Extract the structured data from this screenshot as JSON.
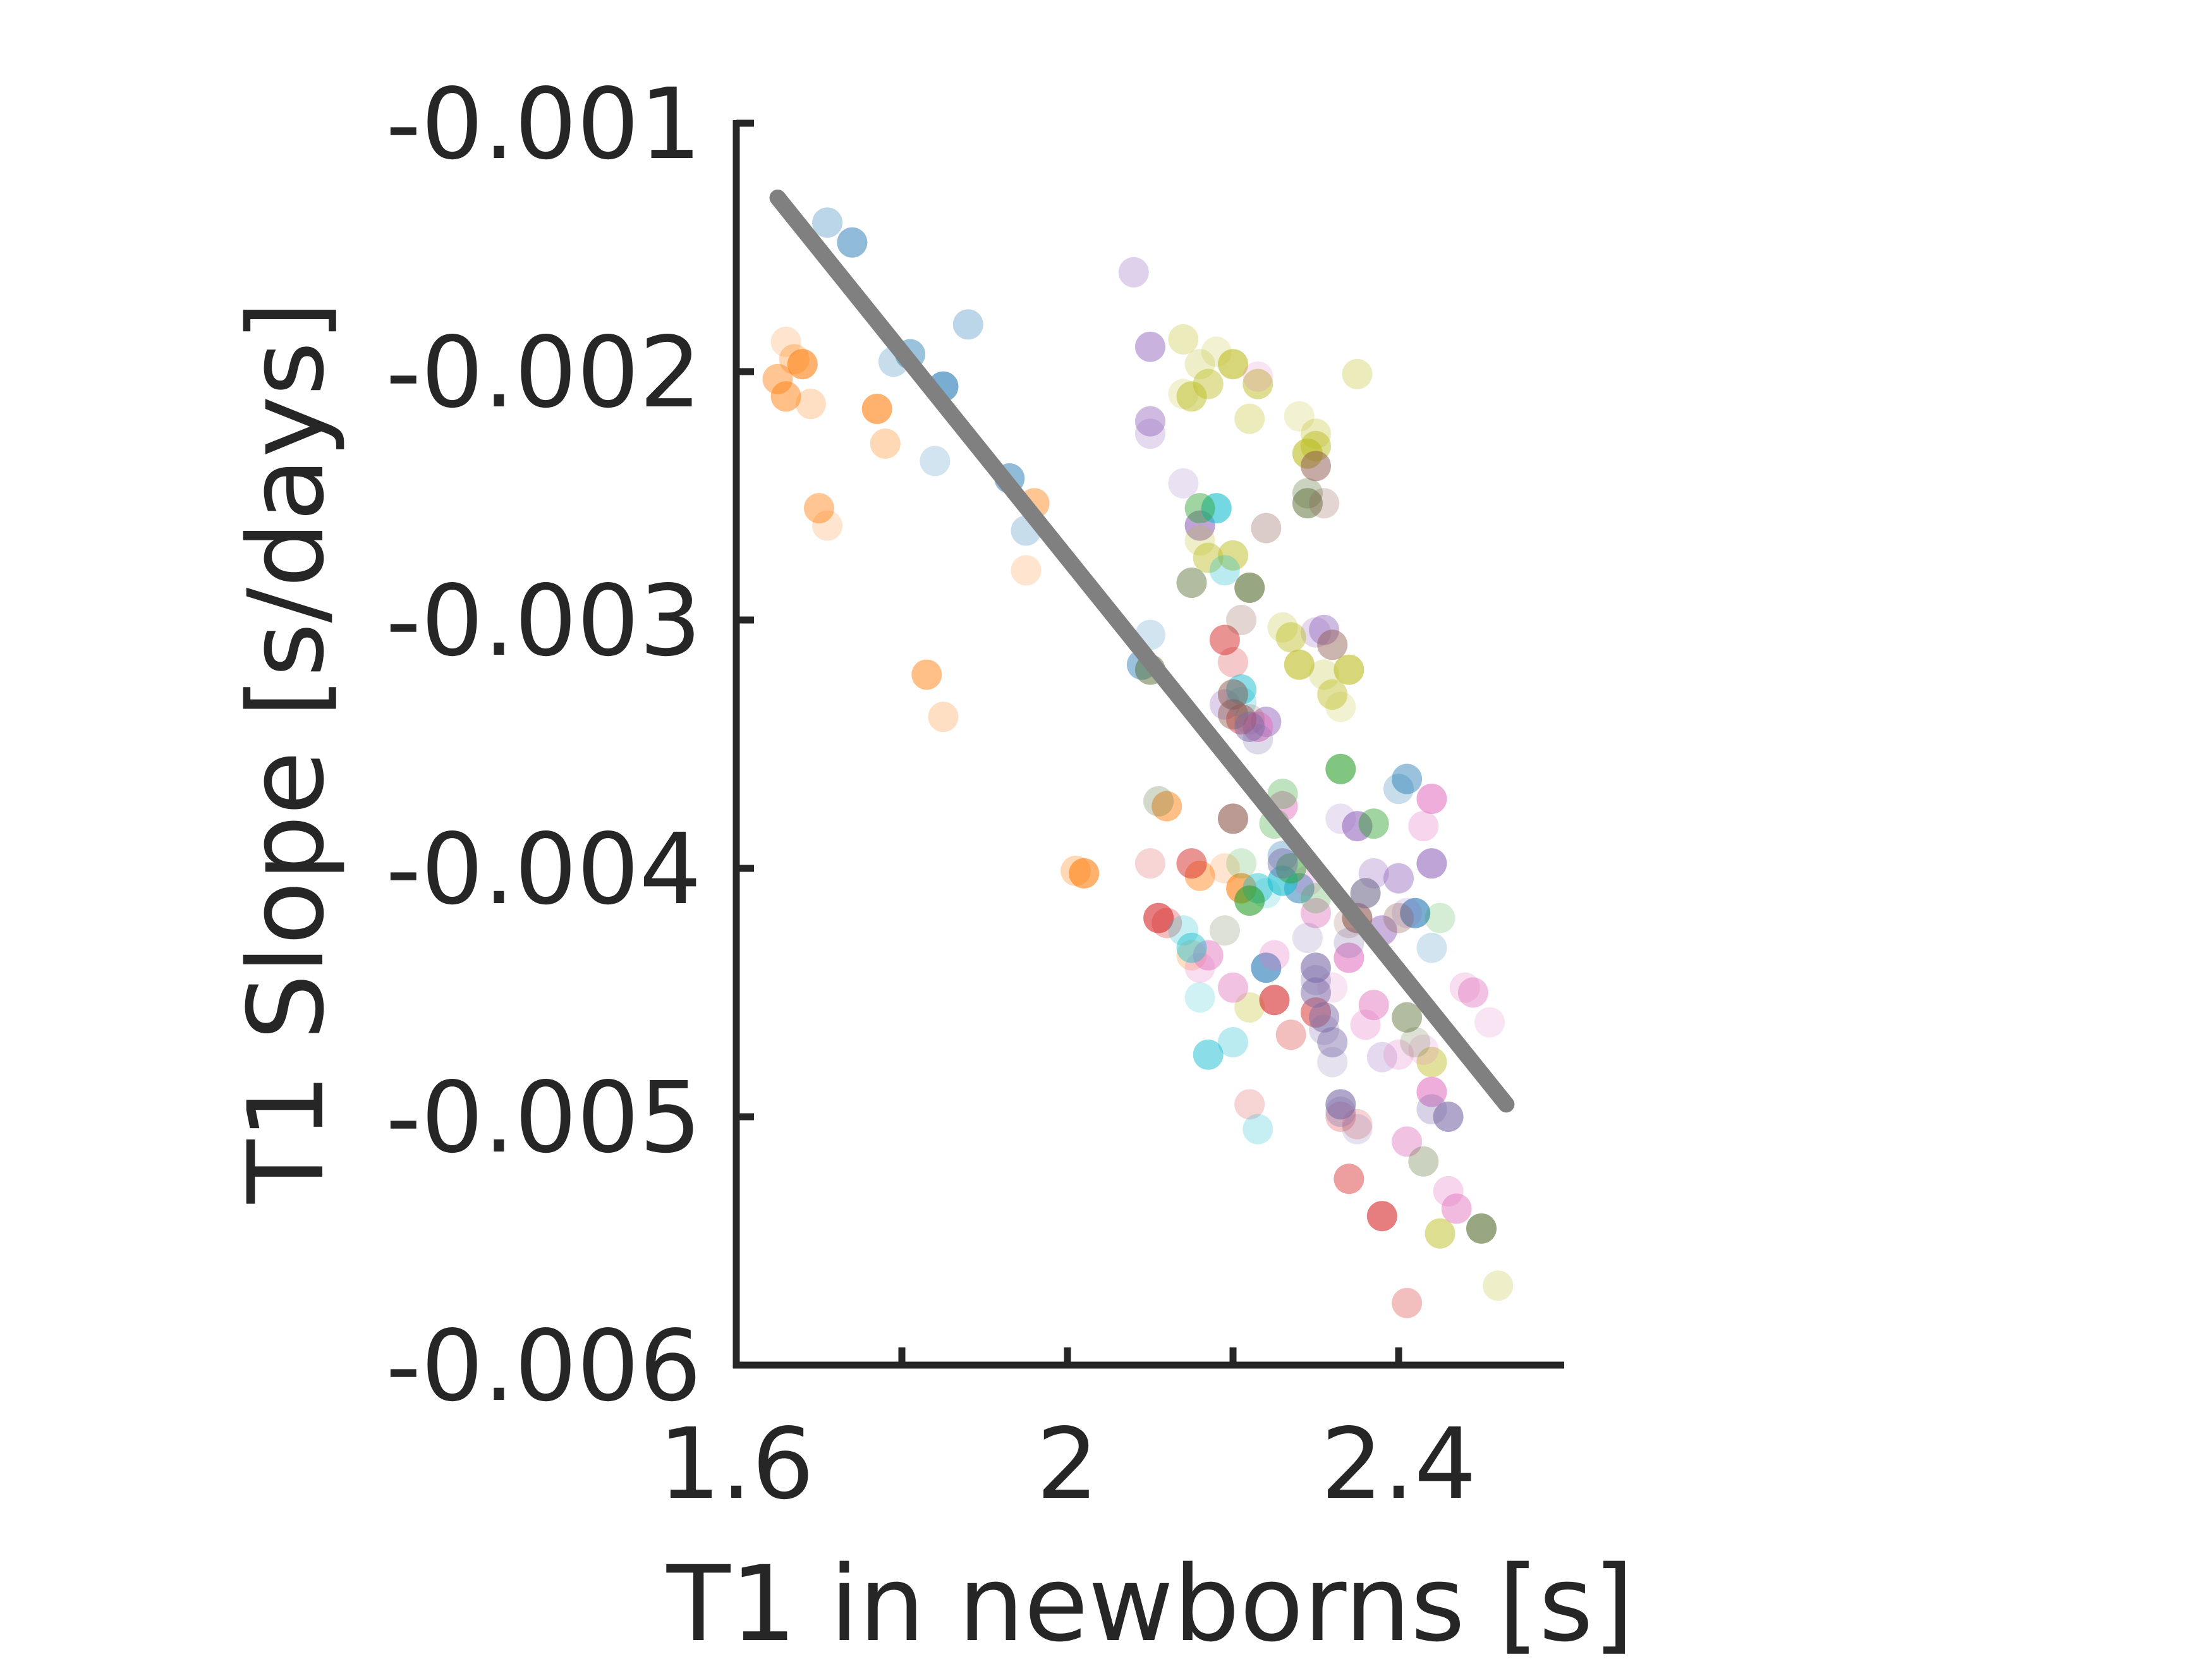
{
  "chart_data": {
    "type": "scatter",
    "title": "",
    "xlabel": "T1 in newborns [s]",
    "ylabel": "T1 Slope [s/days]",
    "xlim": [
      1.6,
      2.6
    ],
    "ylim": [
      -0.006,
      -0.001
    ],
    "x_ticks": [
      1.6,
      1.8,
      2.0,
      2.2,
      2.4
    ],
    "x_tick_labels": [
      "1.6",
      "",
      "2",
      "",
      "2.4"
    ],
    "y_ticks": [
      -0.001,
      -0.002,
      -0.003,
      -0.004,
      -0.005,
      -0.006
    ],
    "y_tick_labels": [
      "-0.001",
      "-0.002",
      "-0.003",
      "-0.004",
      "-0.005",
      "-0.006"
    ],
    "grid": false,
    "legend": "none",
    "fit_line": {
      "x": [
        1.65,
        2.53
      ],
      "y": [
        -0.0013,
        -0.00495
      ],
      "color": "#808080"
    },
    "series": [
      {
        "color": "#FF7F0E",
        "points": [
          [
            1.65,
            -0.00203
          ],
          [
            1.66,
            -0.00188
          ],
          [
            1.68,
            -0.00197
          ],
          [
            1.67,
            -0.00195
          ],
          [
            1.66,
            -0.0021
          ],
          [
            1.69,
            -0.00213
          ],
          [
            1.7,
            -0.00255
          ],
          [
            1.71,
            -0.00262
          ],
          [
            1.77,
            -0.00215
          ],
          [
            1.78,
            -0.00229
          ],
          [
            1.83,
            -0.00322
          ],
          [
            1.85,
            -0.00339
          ],
          [
            1.96,
            -0.00253
          ],
          [
            1.95,
            -0.0028
          ],
          [
            2.02,
            -0.00402
          ],
          [
            2.01,
            -0.00401
          ],
          [
            2.12,
            -0.00375
          ],
          [
            2.15,
            -0.00435
          ],
          [
            2.16,
            -0.00403
          ],
          [
            2.19,
            -0.004
          ],
          [
            2.21,
            -0.00408
          ]
        ]
      },
      {
        "color": "#1F77B4",
        "points": [
          [
            1.71,
            -0.0014
          ],
          [
            1.74,
            -0.00148
          ],
          [
            1.79,
            -0.00196
          ],
          [
            1.81,
            -0.00193
          ],
          [
            1.84,
            -0.00236
          ],
          [
            1.85,
            -0.00206
          ],
          [
            1.88,
            -0.00181
          ],
          [
            1.93,
            -0.00243
          ],
          [
            1.95,
            -0.00264
          ],
          [
            2.09,
            -0.00318
          ],
          [
            2.1,
            -0.00306
          ],
          [
            2.24,
            -0.0044
          ],
          [
            2.26,
            -0.00395
          ],
          [
            2.28,
            -0.00408
          ],
          [
            2.4,
            -0.00368
          ],
          [
            2.41,
            -0.00364
          ],
          [
            2.44,
            -0.00432
          ],
          [
            2.42,
            -0.00418
          ]
        ]
      },
      {
        "color": "#9467BD",
        "points": [
          [
            2.08,
            -0.0016
          ],
          [
            2.1,
            -0.0019
          ],
          [
            2.1,
            -0.00225
          ],
          [
            2.1,
            -0.0022
          ],
          [
            2.14,
            -0.00245
          ],
          [
            2.16,
            -0.00262
          ],
          [
            2.19,
            -0.00334
          ],
          [
            2.24,
            -0.00341
          ],
          [
            2.3,
            -0.00305
          ],
          [
            2.31,
            -0.00304
          ],
          [
            2.33,
            -0.0038
          ],
          [
            2.35,
            -0.00383
          ],
          [
            2.37,
            -0.00402
          ],
          [
            2.38,
            -0.00425
          ],
          [
            2.38,
            -0.00476
          ],
          [
            2.4,
            -0.00404
          ],
          [
            2.41,
            -0.00418
          ],
          [
            2.44,
            -0.00398
          ]
        ]
      },
      {
        "color": "#BCBD22",
        "points": [
          [
            2.14,
            -0.00187
          ],
          [
            2.15,
            -0.0021
          ],
          [
            2.16,
            -0.00197
          ],
          [
            2.17,
            -0.00205
          ],
          [
            2.18,
            -0.00192
          ],
          [
            2.2,
            -0.00197
          ],
          [
            2.22,
            -0.00219
          ],
          [
            2.23,
            -0.00205
          ],
          [
            2.26,
            -0.00303
          ],
          [
            2.27,
            -0.00307
          ],
          [
            2.28,
            -0.00218
          ],
          [
            2.29,
            -0.00233
          ],
          [
            2.3,
            -0.00225
          ],
          [
            2.3,
            -0.0023
          ],
          [
            2.31,
            -0.00322
          ],
          [
            2.32,
            -0.0033
          ],
          [
            2.33,
            -0.00335
          ],
          [
            2.34,
            -0.0032
          ],
          [
            2.35,
            -0.00201
          ],
          [
            2.2,
            -0.00274
          ],
          [
            2.16,
            -0.00268
          ],
          [
            2.17,
            -0.00275
          ],
          [
            2.14,
            -0.00209
          ],
          [
            2.28,
            -0.00318
          ],
          [
            2.22,
            -0.00456
          ],
          [
            2.45,
            -0.00547
          ],
          [
            2.52,
            -0.00568
          ],
          [
            2.44,
            -0.00478
          ]
        ]
      },
      {
        "color": "#E377C2",
        "points": [
          [
            2.23,
            -0.00202
          ],
          [
            2.23,
            -0.00343
          ],
          [
            2.25,
            -0.00435
          ],
          [
            2.26,
            -0.00375
          ],
          [
            2.29,
            -0.00405
          ],
          [
            2.3,
            -0.00418
          ],
          [
            2.32,
            -0.00448
          ],
          [
            2.34,
            -0.00436
          ],
          [
            2.36,
            -0.00463
          ],
          [
            2.37,
            -0.00455
          ],
          [
            2.4,
            -0.00475
          ],
          [
            2.41,
            -0.0051
          ],
          [
            2.43,
            -0.00473
          ],
          [
            2.44,
            -0.0049
          ],
          [
            2.46,
            -0.0053
          ],
          [
            2.47,
            -0.00537
          ],
          [
            2.48,
            -0.00448
          ],
          [
            2.49,
            -0.0045
          ],
          [
            2.51,
            -0.00462
          ],
          [
            2.44,
            -0.00372
          ],
          [
            2.43,
            -0.00383
          ],
          [
            2.17,
            -0.00435
          ],
          [
            2.16,
            -0.0044
          ],
          [
            2.2,
            -0.00448
          ]
        ]
      },
      {
        "color": "#D62728",
        "points": [
          [
            2.1,
            -0.00398
          ],
          [
            2.11,
            -0.0042
          ],
          [
            2.12,
            -0.00422
          ],
          [
            2.15,
            -0.00398
          ],
          [
            2.2,
            -0.00317
          ],
          [
            2.21,
            -0.0034
          ],
          [
            2.22,
            -0.00495
          ],
          [
            2.25,
            -0.00453
          ],
          [
            2.27,
            -0.00467
          ],
          [
            2.3,
            -0.00458
          ],
          [
            2.33,
            -0.005
          ],
          [
            2.34,
            -0.00525
          ],
          [
            2.35,
            -0.00503
          ],
          [
            2.38,
            -0.0054
          ],
          [
            2.41,
            -0.00575
          ],
          [
            2.19,
            -0.00308
          ]
        ]
      },
      {
        "color": "#17BECF",
        "points": [
          [
            2.14,
            -0.00425
          ],
          [
            2.15,
            -0.00432
          ],
          [
            2.16,
            -0.00452
          ],
          [
            2.18,
            -0.00255
          ],
          [
            2.2,
            -0.0047
          ],
          [
            2.21,
            -0.00328
          ],
          [
            2.21,
            -0.00333
          ],
          [
            2.23,
            -0.00408
          ],
          [
            2.24,
            -0.0041
          ],
          [
            2.26,
            -0.00405
          ],
          [
            2.19,
            -0.0028
          ],
          [
            2.17,
            -0.00475
          ],
          [
            2.23,
            -0.00505
          ]
        ]
      },
      {
        "color": "#2CA02C",
        "points": [
          [
            2.16,
            -0.00255
          ],
          [
            2.21,
            -0.00398
          ],
          [
            2.22,
            -0.00413
          ],
          [
            2.25,
            -0.00382
          ],
          [
            2.27,
            -0.004
          ],
          [
            2.3,
            -0.00412
          ],
          [
            2.37,
            -0.00382
          ],
          [
            2.45,
            -0.0042
          ],
          [
            2.33,
            -0.0036
          ],
          [
            2.26,
            -0.0037
          ]
        ]
      },
      {
        "color": "#556B2F",
        "points": [
          [
            2.1,
            -0.0032
          ],
          [
            2.11,
            -0.00373
          ],
          [
            2.15,
            -0.00285
          ],
          [
            2.19,
            -0.00425
          ],
          [
            2.22,
            -0.00287
          ],
          [
            2.29,
            -0.00249
          ],
          [
            2.29,
            -0.00253
          ],
          [
            2.36,
            -0.0041
          ],
          [
            2.41,
            -0.0046
          ],
          [
            2.42,
            -0.0047
          ],
          [
            2.5,
            -0.00545
          ],
          [
            2.43,
            -0.00518
          ]
        ]
      },
      {
        "color": "#8C564B",
        "points": [
          [
            2.2,
            -0.0033
          ],
          [
            2.21,
            -0.003
          ],
          [
            2.2,
            -0.00338
          ],
          [
            2.22,
            -0.0034
          ],
          [
            2.2,
            -0.0038
          ],
          [
            2.24,
            -0.00263
          ],
          [
            2.3,
            -0.00238
          ],
          [
            2.31,
            -0.00253
          ],
          [
            2.32,
            -0.0031
          ],
          [
            2.34,
            -0.00422
          ],
          [
            2.35,
            -0.0042
          ],
          [
            2.4,
            -0.0042
          ]
        ]
      },
      {
        "color": "#7B6BA8",
        "points": [
          [
            2.22,
            -0.00343
          ],
          [
            2.23,
            -0.00348
          ],
          [
            2.26,
            -0.00398
          ],
          [
            2.29,
            -0.00428
          ],
          [
            2.3,
            -0.0044
          ],
          [
            2.3,
            -0.00445
          ],
          [
            2.31,
            -0.0046
          ],
          [
            2.31,
            -0.00465
          ],
          [
            2.32,
            -0.0047
          ],
          [
            2.32,
            -0.00478
          ],
          [
            2.33,
            -0.00495
          ],
          [
            2.33,
            -0.00498
          ],
          [
            2.3,
            -0.0045
          ],
          [
            2.34,
            -0.0043
          ],
          [
            2.36,
            -0.0041
          ],
          [
            2.35,
            -0.00505
          ],
          [
            2.46,
            -0.005
          ],
          [
            2.44,
            -0.00497
          ]
        ]
      }
    ]
  }
}
